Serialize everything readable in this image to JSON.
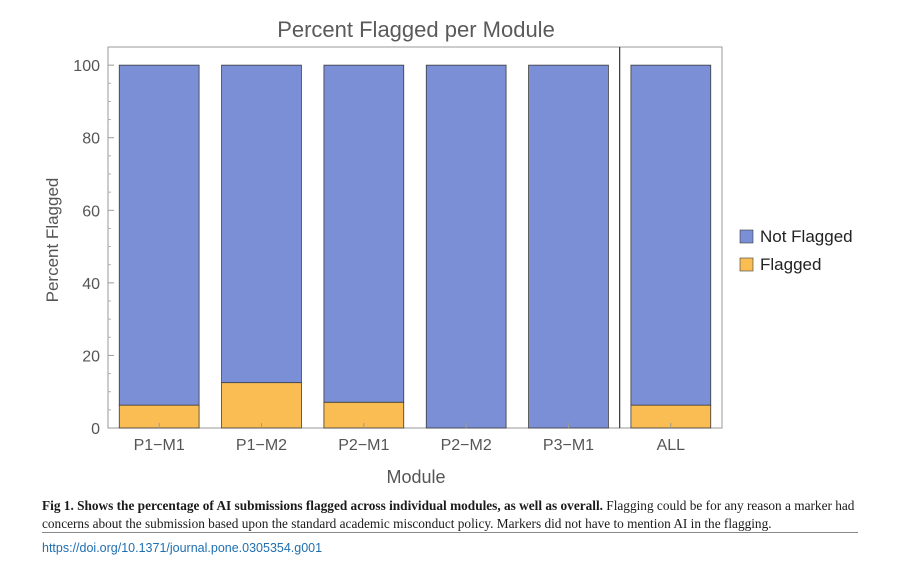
{
  "chart_data": {
    "type": "bar",
    "stacked": true,
    "title": "Percent Flagged per Module",
    "xlabel": "Module",
    "ylabel": "Percent Flagged",
    "categories": [
      "P1−M1",
      "P1−M2",
      "P2−M1",
      "P2−M2",
      "P3−M1",
      "ALL"
    ],
    "series": [
      {
        "name": "Flagged",
        "color": "#f9bd54",
        "values": [
          6.3,
          12.5,
          7.1,
          0,
          0,
          6.3
        ]
      },
      {
        "name": "Not Flagged",
        "color": "#7b8fd6",
        "values": [
          93.7,
          87.5,
          92.9,
          100,
          100,
          93.7
        ]
      }
    ],
    "legend": [
      "Not Flagged",
      "Flagged"
    ],
    "legend_position": "right",
    "ylim": [
      0,
      105
    ],
    "yticks": [
      0,
      20,
      40,
      60,
      80,
      100
    ],
    "separator_before": "ALL",
    "grid": false
  },
  "caption": {
    "label": "Fig 1. Shows the percentage of AI submissions flagged across individual modules, as well as overall.",
    "text": " Flagging could be for any reason a marker had concerns about the submission based upon the standard academic misconduct policy. Markers did not have to mention AI in the flagging."
  },
  "doi": "https://doi.org/10.1371/journal.pone.0305354.g001"
}
